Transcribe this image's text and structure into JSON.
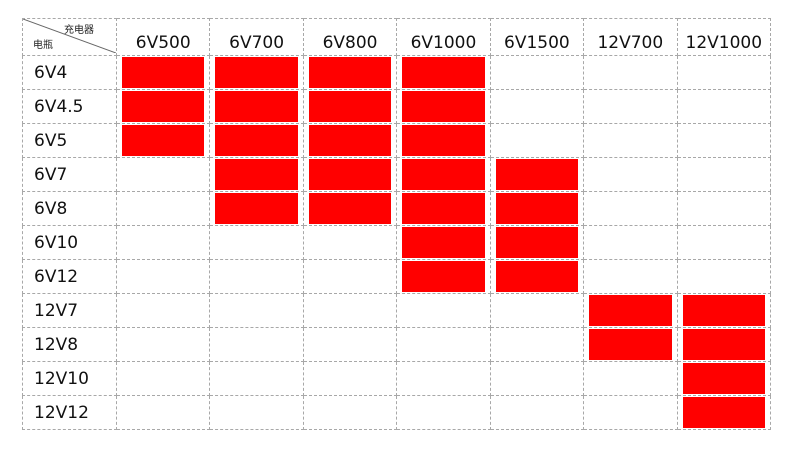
{
  "table": {
    "corner": {
      "top_label": "充电器",
      "bottom_label": "电瓶"
    },
    "columns": [
      "6V500",
      "6V700",
      "6V800",
      "6V1000",
      "6V1500",
      "12V700",
      "12V1000"
    ],
    "rows": [
      {
        "label": "6V4",
        "compatible": [
          1,
          1,
          1,
          1,
          0,
          0,
          0
        ]
      },
      {
        "label": "6V4.5",
        "compatible": [
          1,
          1,
          1,
          1,
          0,
          0,
          0
        ]
      },
      {
        "label": "6V5",
        "compatible": [
          1,
          1,
          1,
          1,
          0,
          0,
          0
        ]
      },
      {
        "label": "6V7",
        "compatible": [
          0,
          1,
          1,
          1,
          1,
          0,
          0
        ]
      },
      {
        "label": "6V8",
        "compatible": [
          0,
          1,
          1,
          1,
          1,
          0,
          0
        ]
      },
      {
        "label": "6V10",
        "compatible": [
          0,
          0,
          0,
          1,
          1,
          0,
          0
        ]
      },
      {
        "label": "6V12",
        "compatible": [
          0,
          0,
          0,
          1,
          1,
          0,
          0
        ]
      },
      {
        "label": "12V7",
        "compatible": [
          0,
          0,
          0,
          0,
          0,
          1,
          1
        ]
      },
      {
        "label": "12V8",
        "compatible": [
          0,
          0,
          0,
          0,
          0,
          1,
          1
        ]
      },
      {
        "label": "12V10",
        "compatible": [
          0,
          0,
          0,
          0,
          0,
          0,
          1
        ]
      },
      {
        "label": "12V12",
        "compatible": [
          0,
          0,
          0,
          0,
          0,
          0,
          1
        ]
      }
    ],
    "fill_color": "#ff0000"
  }
}
